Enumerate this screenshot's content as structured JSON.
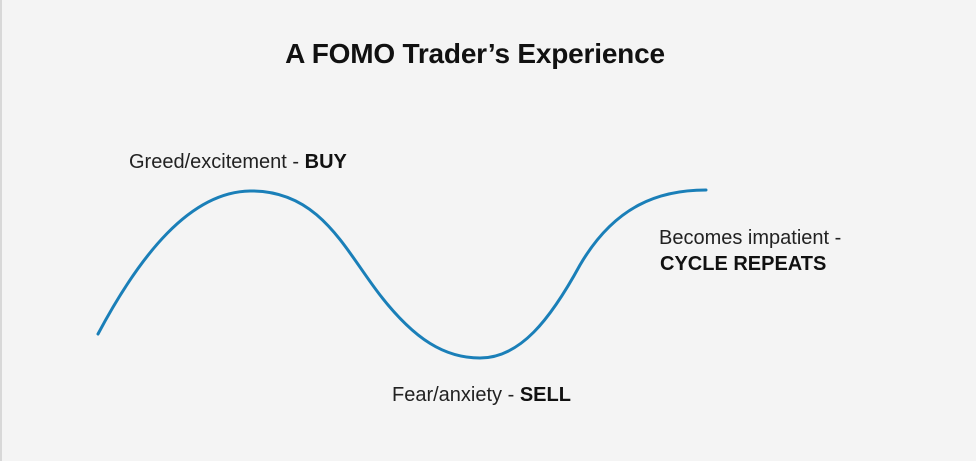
{
  "title": "A FOMO Trader’s Experience",
  "curve_color": "#1a7fb8",
  "labels": {
    "peak": {
      "text": "Greed/excitement - ",
      "bold": "BUY"
    },
    "trough": {
      "text": "Fear/anxiety - ",
      "bold": "SELL"
    },
    "end": {
      "text": "Becomes impatient  -",
      "bold": "CYCLE REPEATS"
    }
  }
}
